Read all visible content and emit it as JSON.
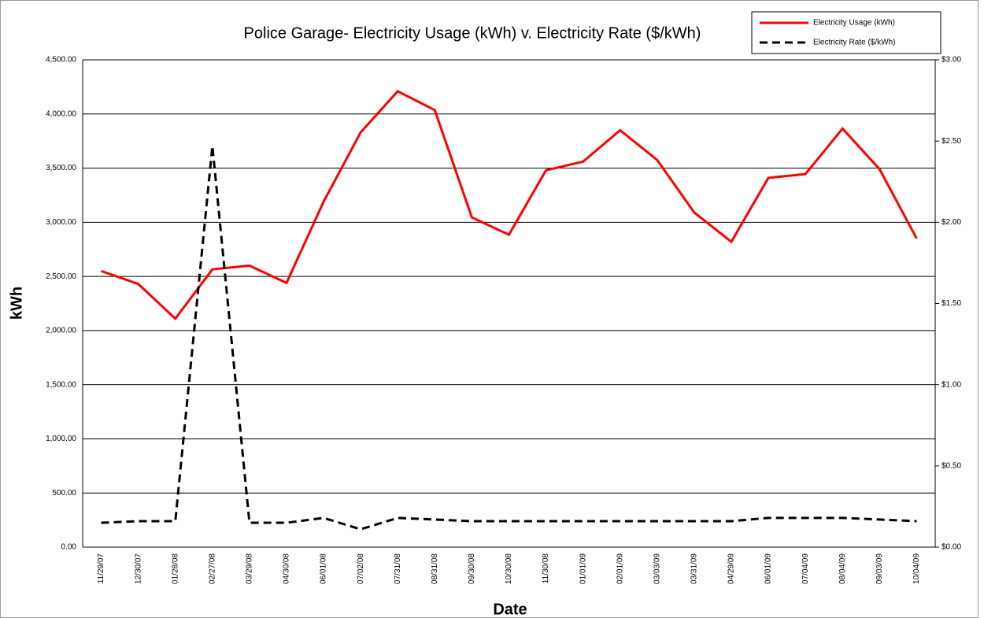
{
  "chart_data": {
    "type": "line",
    "title": "Police Garage- Electricity Usage (kWh) v. Electricity Rate ($/kWh)",
    "y_label": "kWh",
    "x_label": "Date",
    "categories": [
      "11/29/07",
      "12/30/07",
      "01/28/08",
      "02/27/08",
      "03/29/08",
      "04/30/08",
      "06/01/08",
      "07/02/08",
      "07/31/08",
      "08/31/08",
      "09/30/08",
      "10/30/08",
      "11/30/08",
      "01/01/09",
      "02/01/09",
      "03/03/09",
      "03/31/09",
      "04/29/09",
      "06/01/09",
      "07/04/09",
      "08/04/09",
      "09/03/09",
      "10/04/09"
    ],
    "series": [
      {
        "name": "Electricity Usage (kWh)",
        "color": "#ff0000",
        "dash": false,
        "values": [
          2550,
          2430,
          2110,
          2565,
          2600,
          2440,
          3190,
          3830,
          4210,
          4035,
          3045,
          2885,
          3480,
          3560,
          3850,
          3575,
          3090,
          2820,
          3410,
          3445,
          3865,
          3490,
          2850
        ]
      },
      {
        "name": "Electricity Rate ($/kWh)",
        "color": "#000000",
        "dash": true,
        "axis": "y2",
        "values": [
          0.15,
          0.16,
          0.16,
          2.47,
          0.15,
          0.15,
          0.18,
          0.11,
          0.18,
          0.17,
          0.16,
          0.16,
          0.16,
          0.16,
          0.16,
          0.16,
          0.16,
          0.16,
          0.18,
          0.18,
          0.18,
          0.17,
          0.16
        ]
      }
    ],
    "ylim": [
      0,
      4500
    ],
    "yticks": [
      {
        "value": 0,
        "label": "0.00"
      },
      {
        "value": 500,
        "label": "500.00"
      },
      {
        "value": 1000,
        "label": "1,000.00"
      },
      {
        "value": 1500,
        "label": "1,500.00"
      },
      {
        "value": 2000,
        "label": "2,000.00"
      },
      {
        "value": 2500,
        "label": "2,500.00"
      },
      {
        "value": 3000,
        "label": "3,000.00"
      },
      {
        "value": 3500,
        "label": "3,500.00"
      },
      {
        "value": 4000,
        "label": "4,000.00"
      },
      {
        "value": 4500,
        "label": "4,500.00"
      }
    ],
    "y2lim": [
      0,
      3
    ],
    "y2ticks": [
      {
        "value": 0,
        "label": "$0.00"
      },
      {
        "value": 0.5,
        "label": "$0.50"
      },
      {
        "value": 1,
        "label": "$1.00"
      },
      {
        "value": 1.5,
        "label": "$1.50"
      },
      {
        "value": 2,
        "label": "$2.00"
      },
      {
        "value": 2.5,
        "label": "$2.50"
      },
      {
        "value": 3,
        "label": "$3.00"
      }
    ],
    "grid": true,
    "legend": "top-right"
  }
}
